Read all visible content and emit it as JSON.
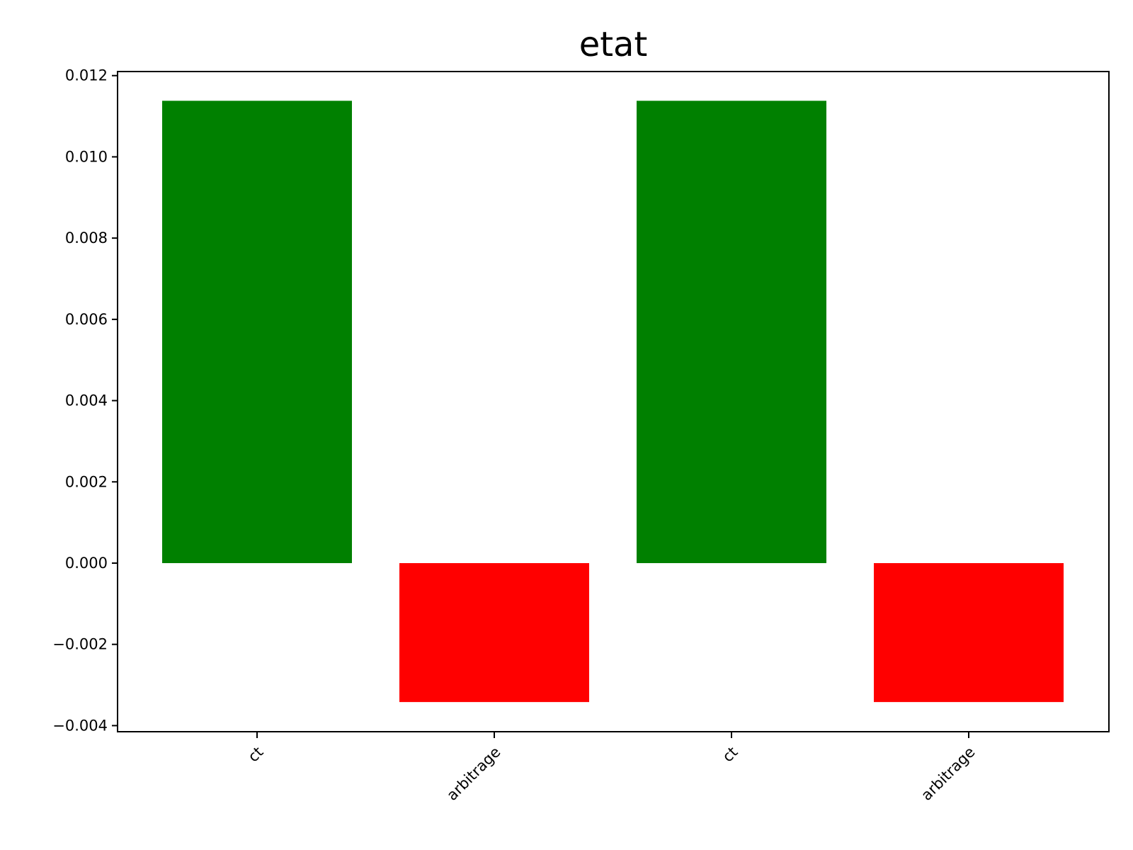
{
  "chart_data": {
    "type": "bar",
    "title": "etat",
    "xlabel": "",
    "ylabel": "",
    "categories": [
      "ct",
      "arbitrage",
      "ct",
      "arbitrage"
    ],
    "values": [
      0.01138,
      -0.00342,
      0.01138,
      -0.00342
    ],
    "bar_colors": [
      "#008000",
      "#ff0000",
      "#008000",
      "#ff0000"
    ],
    "ylim": [
      -0.00415,
      0.0121
    ],
    "yticks": [
      {
        "value": 0.012,
        "label": "0.012"
      },
      {
        "value": 0.01,
        "label": "0.010"
      },
      {
        "value": 0.008,
        "label": "0.008"
      },
      {
        "value": 0.006,
        "label": "0.006"
      },
      {
        "value": 0.004,
        "label": "0.004"
      },
      {
        "value": 0.002,
        "label": "0.002"
      },
      {
        "value": 0.0,
        "label": "0.000"
      },
      {
        "value": -0.002,
        "label": "−0.002"
      },
      {
        "value": -0.004,
        "label": "−0.004"
      }
    ],
    "xtick_rotation_deg": -45,
    "grid": false,
    "legend": "none"
  }
}
